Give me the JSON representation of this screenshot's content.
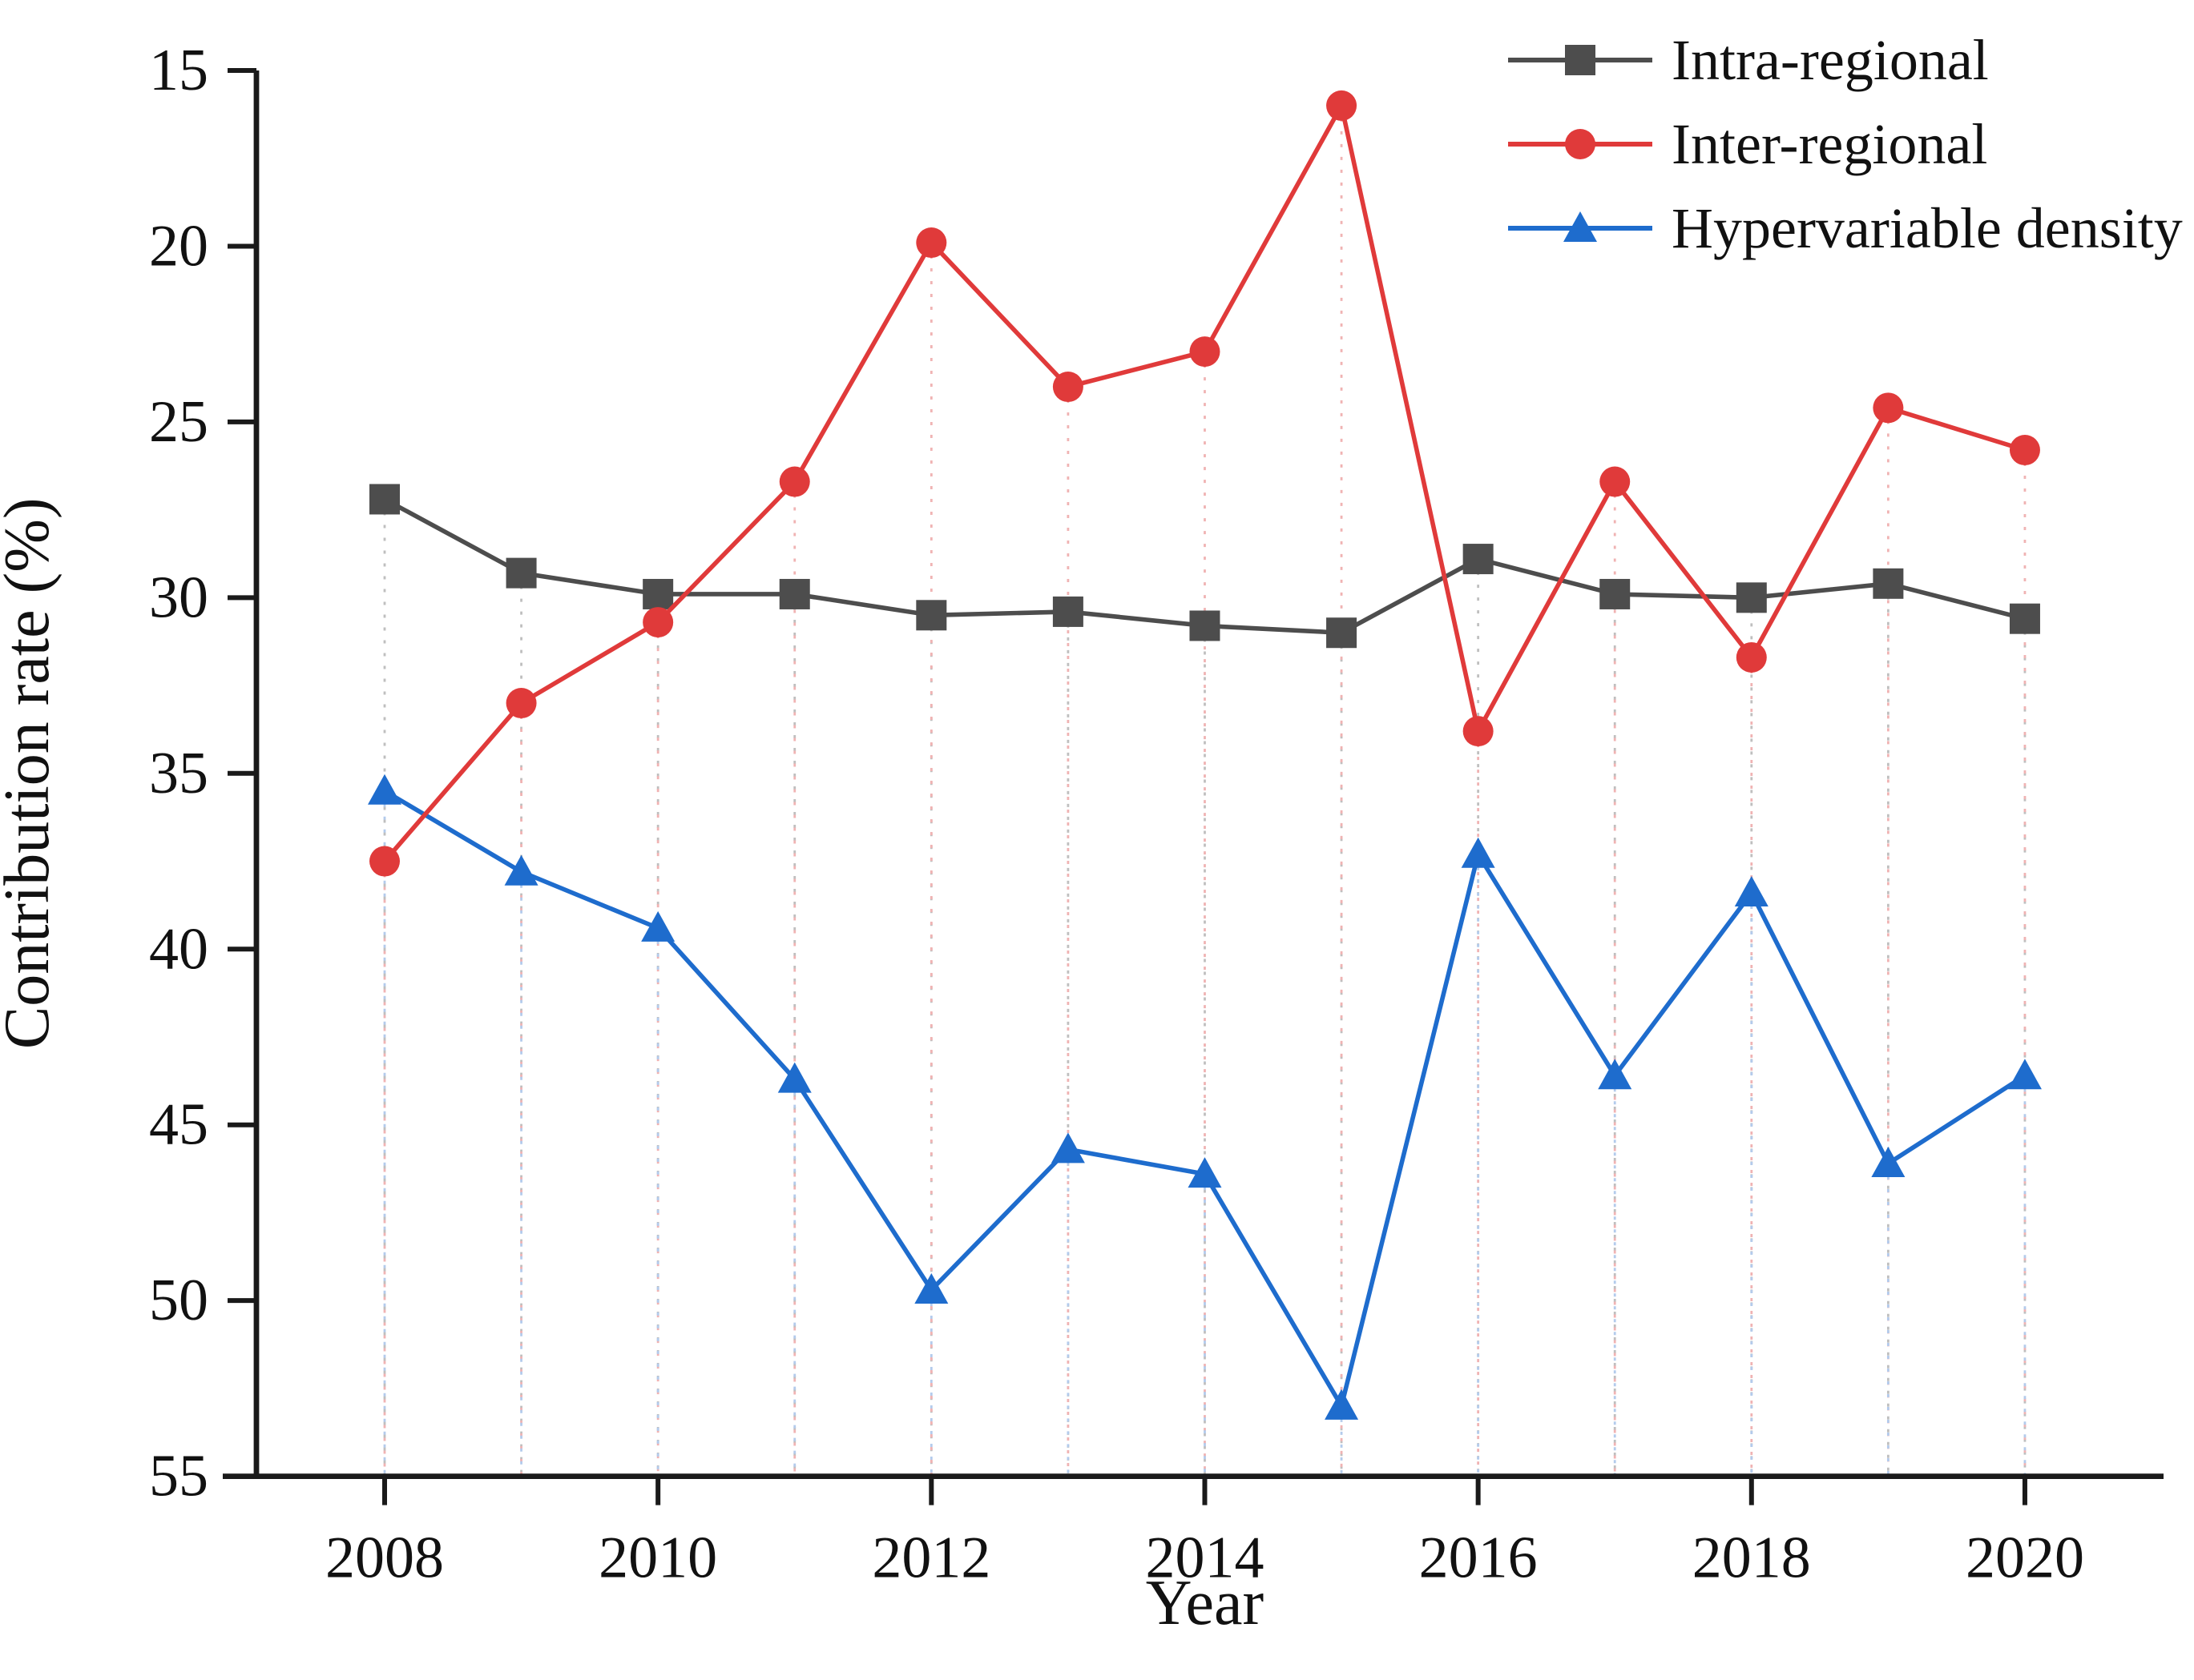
{
  "figure": {
    "caption": "Line chart of contribution rates by year for intra-regional, inter-regional and hypervariable density components"
  },
  "chart_data": {
    "type": "line",
    "title": "",
    "xlabel": "Year",
    "ylabel": "Contribution rate (%)",
    "x": [
      2008,
      2009,
      2010,
      2011,
      2012,
      2013,
      2014,
      2015,
      2016,
      2017,
      2018,
      2019,
      2020
    ],
    "xticks": [
      2008,
      2010,
      2012,
      2014,
      2016,
      2018,
      2020
    ],
    "yticks": [
      15,
      20,
      25,
      30,
      35,
      40,
      45,
      50,
      55
    ],
    "ylim": [
      55,
      15
    ],
    "y_axis_inverted": true,
    "grid": false,
    "stem_lines": true,
    "legend_position": "top-right",
    "axis_color": "#1a1a1a",
    "series": [
      {
        "name": "Intra-regional",
        "marker": "square",
        "color": "#4d4d4d",
        "stem_color": "#bfbfbf",
        "values": [
          27.2,
          29.3,
          29.9,
          29.9,
          30.5,
          30.4,
          30.8,
          31.0,
          28.9,
          29.9,
          30.0,
          29.6,
          30.6
        ]
      },
      {
        "name": "Inter-regional",
        "marker": "circle",
        "color": "#e03a3a",
        "stem_color": "#f0b3b3",
        "values": [
          37.5,
          33.0,
          30.7,
          26.7,
          19.9,
          24.0,
          23.0,
          16.0,
          33.8,
          26.7,
          31.7,
          24.6,
          25.8
        ]
      },
      {
        "name": "Hypervariable density",
        "marker": "triangle",
        "color": "#1e6ccd",
        "stem_color": "#b3cbec",
        "values": [
          35.5,
          37.8,
          39.4,
          43.7,
          49.7,
          45.7,
          46.4,
          53.0,
          37.3,
          43.6,
          38.4,
          46.1,
          43.6
        ]
      }
    ]
  }
}
